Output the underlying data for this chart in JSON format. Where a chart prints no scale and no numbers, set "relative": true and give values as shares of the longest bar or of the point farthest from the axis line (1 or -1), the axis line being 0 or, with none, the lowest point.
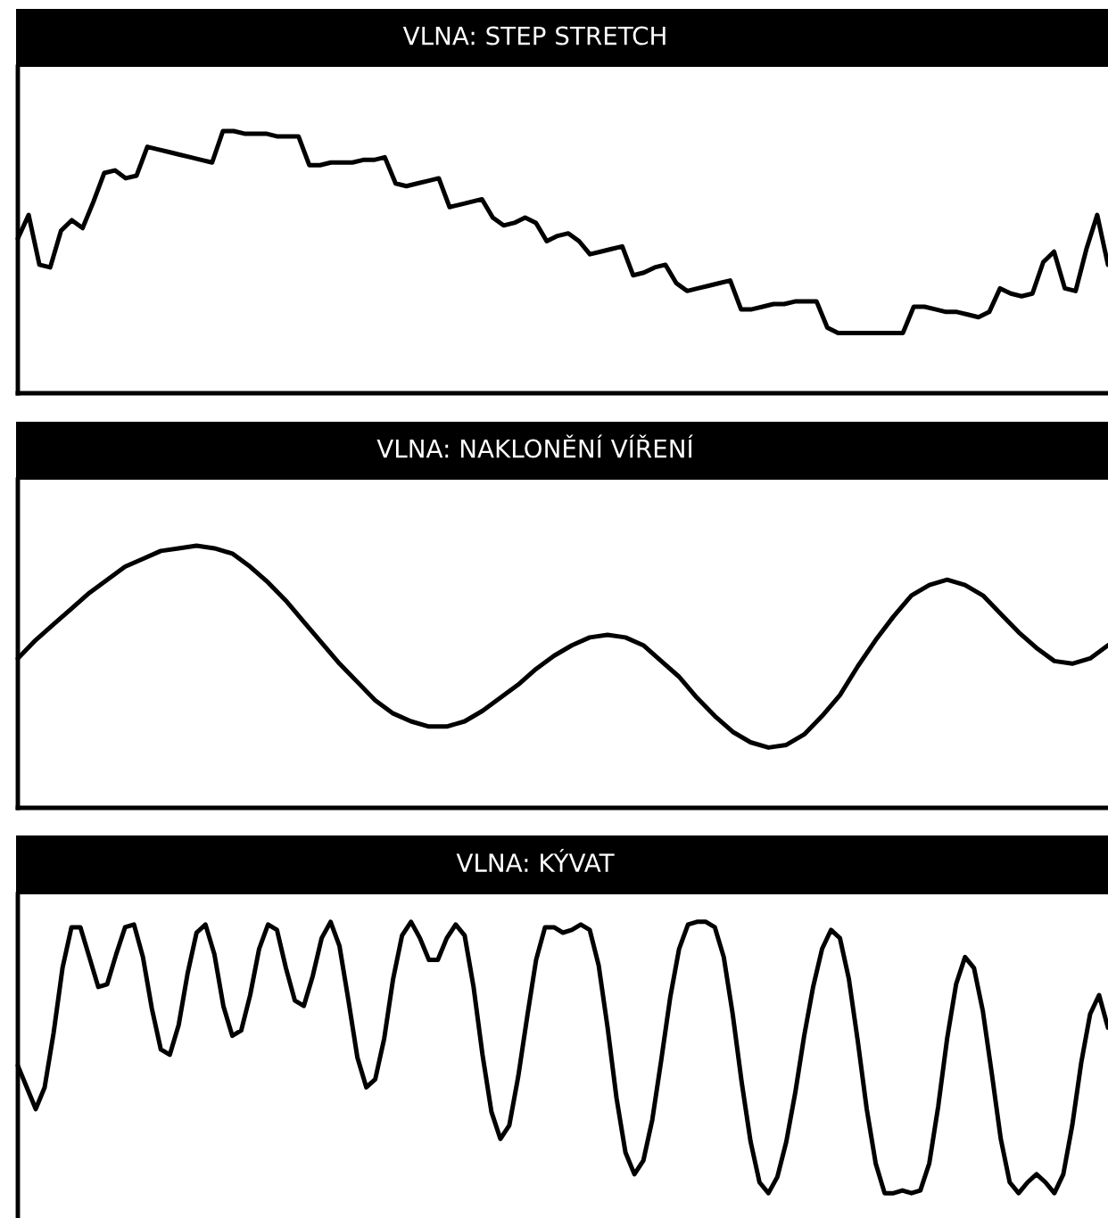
{
  "chart_data": [
    {
      "type": "line",
      "title": "VLNA: STEP STRETCH",
      "relative": true,
      "color": "#000000",
      "categories": [
        null,
        null,
        null,
        null,
        null,
        null,
        null,
        null,
        null,
        null,
        null,
        null,
        null,
        null,
        null,
        null,
        null,
        null,
        null,
        null,
        null,
        null,
        null,
        null,
        null,
        null,
        null,
        null,
        null,
        null,
        null,
        null,
        null,
        null,
        null,
        null,
        null,
        null,
        null,
        null,
        null,
        null,
        null,
        null,
        null,
        null,
        null,
        null,
        null,
        null,
        null,
        null,
        null,
        null,
        null,
        null,
        null,
        null,
        null,
        null,
        null,
        null,
        null,
        null,
        null,
        null,
        null,
        null,
        null,
        null,
        null,
        null,
        null,
        null,
        null,
        null,
        null,
        null,
        null,
        null,
        null,
        null,
        null,
        null,
        null,
        null,
        null,
        null,
        null,
        null,
        null,
        null,
        null,
        null,
        null,
        null,
        null,
        null,
        null,
        null,
        null,
        null
      ],
      "values": [
        0.59,
        0.68,
        0.49,
        0.48,
        0.62,
        0.66,
        0.63,
        0.73,
        0.84,
        0.85,
        0.82,
        0.83,
        0.94,
        0.93,
        0.92,
        0.91,
        0.9,
        0.89,
        0.88,
        1.0,
        1.0,
        0.99,
        0.99,
        0.99,
        0.98,
        0.98,
        0.98,
        0.87,
        0.87,
        0.88,
        0.88,
        0.88,
        0.89,
        0.89,
        0.9,
        0.8,
        0.79,
        0.8,
        0.81,
        0.82,
        0.71,
        0.72,
        0.73,
        0.74,
        0.67,
        0.64,
        0.65,
        0.67,
        0.65,
        0.58,
        0.6,
        0.61,
        0.58,
        0.53,
        0.54,
        0.55,
        0.56,
        0.45,
        0.46,
        0.48,
        0.49,
        0.42,
        0.39,
        0.4,
        0.41,
        0.42,
        0.43,
        0.32,
        0.32,
        0.33,
        0.34,
        0.34,
        0.35,
        0.35,
        0.35,
        0.25,
        0.23,
        0.23,
        0.23,
        0.23,
        0.23,
        0.23,
        0.23,
        0.33,
        0.33,
        0.32,
        0.31,
        0.31,
        0.3,
        0.29,
        0.31,
        0.4,
        0.38,
        0.37,
        0.38,
        0.5,
        0.54,
        0.4,
        0.39,
        0.55,
        0.68,
        0.49
      ]
    },
    {
      "type": "line",
      "title": "VLNA: NAKLONĚNÍ VÍŘENÍ",
      "relative": true,
      "color": "#000000",
      "categories": [
        null,
        null,
        null,
        null,
        null,
        null,
        null,
        null,
        null,
        null,
        null,
        null,
        null,
        null,
        null,
        null,
        null,
        null,
        null,
        null,
        null,
        null,
        null,
        null,
        null,
        null,
        null,
        null,
        null,
        null,
        null,
        null,
        null,
        null,
        null,
        null,
        null,
        null,
        null,
        null,
        null,
        null,
        null,
        null,
        null,
        null,
        null,
        null,
        null,
        null,
        null,
        null,
        null,
        null,
        null,
        null,
        null,
        null,
        null,
        null,
        null,
        null
      ],
      "values": [
        0.57,
        0.64,
        0.7,
        0.76,
        0.82,
        0.87,
        0.92,
        0.95,
        0.98,
        0.99,
        1.0,
        0.99,
        0.97,
        0.92,
        0.86,
        0.79,
        0.71,
        0.63,
        0.55,
        0.48,
        0.41,
        0.36,
        0.33,
        0.31,
        0.31,
        0.33,
        0.37,
        0.42,
        0.47,
        0.53,
        0.58,
        0.62,
        0.65,
        0.66,
        0.65,
        0.62,
        0.56,
        0.5,
        0.42,
        0.35,
        0.29,
        0.25,
        0.23,
        0.24,
        0.28,
        0.35,
        0.43,
        0.54,
        0.64,
        0.73,
        0.81,
        0.85,
        0.87,
        0.85,
        0.81,
        0.74,
        0.67,
        0.61,
        0.56,
        0.55,
        0.57,
        0.62
      ]
    },
    {
      "type": "line",
      "title": "VLNA: KÝVAT",
      "relative": true,
      "color": "#000000",
      "categories": [
        null,
        null,
        null,
        null,
        null,
        null,
        null,
        null,
        null,
        null,
        null,
        null,
        null,
        null,
        null,
        null,
        null,
        null,
        null,
        null,
        null,
        null,
        null,
        null,
        null,
        null,
        null,
        null,
        null,
        null,
        null,
        null,
        null,
        null,
        null,
        null,
        null,
        null,
        null,
        null,
        null,
        null,
        null,
        null,
        null,
        null,
        null,
        null,
        null,
        null,
        null,
        null,
        null,
        null,
        null,
        null,
        null,
        null,
        null,
        null,
        null,
        null,
        null,
        null,
        null,
        null,
        null,
        null,
        null,
        null,
        null,
        null,
        null,
        null,
        null,
        null,
        null,
        null,
        null,
        null,
        null,
        null,
        null,
        null,
        null,
        null,
        null,
        null,
        null,
        null,
        null,
        null,
        null,
        null,
        null,
        null,
        null,
        null,
        null,
        null,
        null,
        null,
        null,
        null,
        null,
        null,
        null,
        null,
        null,
        null,
        null,
        null,
        null,
        null,
        null,
        null,
        null,
        null,
        null,
        null,
        null,
        null,
        null
      ],
      "values": [
        0.47,
        0.39,
        0.31,
        0.39,
        0.59,
        0.83,
        0.98,
        0.98,
        0.87,
        0.76,
        0.77,
        0.88,
        0.98,
        0.99,
        0.87,
        0.68,
        0.53,
        0.51,
        0.62,
        0.81,
        0.96,
        0.99,
        0.88,
        0.69,
        0.58,
        0.6,
        0.73,
        0.9,
        0.99,
        0.97,
        0.83,
        0.71,
        0.69,
        0.8,
        0.94,
        1.0,
        0.91,
        0.71,
        0.5,
        0.39,
        0.42,
        0.57,
        0.79,
        0.95,
        1.0,
        0.94,
        0.86,
        0.86,
        0.94,
        0.99,
        0.95,
        0.76,
        0.51,
        0.3,
        0.2,
        0.25,
        0.43,
        0.65,
        0.86,
        0.98,
        0.98,
        0.96,
        0.97,
        0.99,
        0.97,
        0.84,
        0.61,
        0.35,
        0.15,
        0.07,
        0.12,
        0.27,
        0.49,
        0.72,
        0.9,
        0.99,
        1.0,
        1.0,
        0.98,
        0.87,
        0.66,
        0.41,
        0.19,
        0.04,
        0.0,
        0.06,
        0.19,
        0.37,
        0.58,
        0.76,
        0.9,
        0.97,
        0.94,
        0.79,
        0.56,
        0.31,
        0.11,
        0.0,
        0.0,
        0.01,
        0.0,
        0.01,
        0.11,
        0.32,
        0.57,
        0.77,
        0.87,
        0.83,
        0.67,
        0.44,
        0.2,
        0.04,
        0.0,
        0.04,
        0.07,
        0.04,
        0.0,
        0.07,
        0.25,
        0.48,
        0.66,
        0.73,
        0.61
      ]
    }
  ]
}
